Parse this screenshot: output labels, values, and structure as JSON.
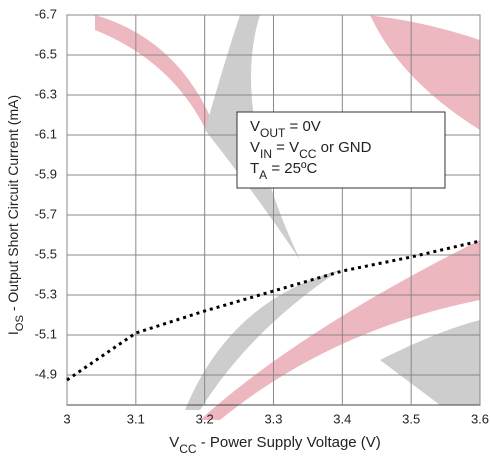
{
  "chart_data": {
    "type": "line",
    "x": [
      3.0,
      3.1,
      3.2,
      3.3,
      3.4,
      3.5,
      3.6
    ],
    "values": [
      -4.875,
      -5.11,
      -5.22,
      -5.32,
      -5.42,
      -5.49,
      -5.57
    ],
    "color": "#000000",
    "xlim": [
      3.0,
      3.6
    ],
    "xticks": [
      3,
      3.1,
      3.2,
      3.3,
      3.4,
      3.5,
      3.6
    ],
    "ylim": [
      -6.7,
      -4.75
    ],
    "yticks": [
      -6.7,
      -6.5,
      -6.3,
      -6.1,
      -5.9,
      -5.7,
      -5.5,
      -5.3,
      -5.1,
      -4.9
    ],
    "grid": true,
    "xlabel": [
      "V",
      "CC",
      " - Power Supply Voltage (V)"
    ],
    "ylabel": [
      "I",
      "OS",
      " - Output Short Circuit Current (mA)"
    ],
    "annotation": [
      [
        "V",
        "OUT",
        " = 0V"
      ],
      [
        "V",
        "IN",
        " = V",
        "CC",
        " or GND"
      ],
      [
        "T",
        "A",
        " = 25ºC"
      ]
    ]
  }
}
